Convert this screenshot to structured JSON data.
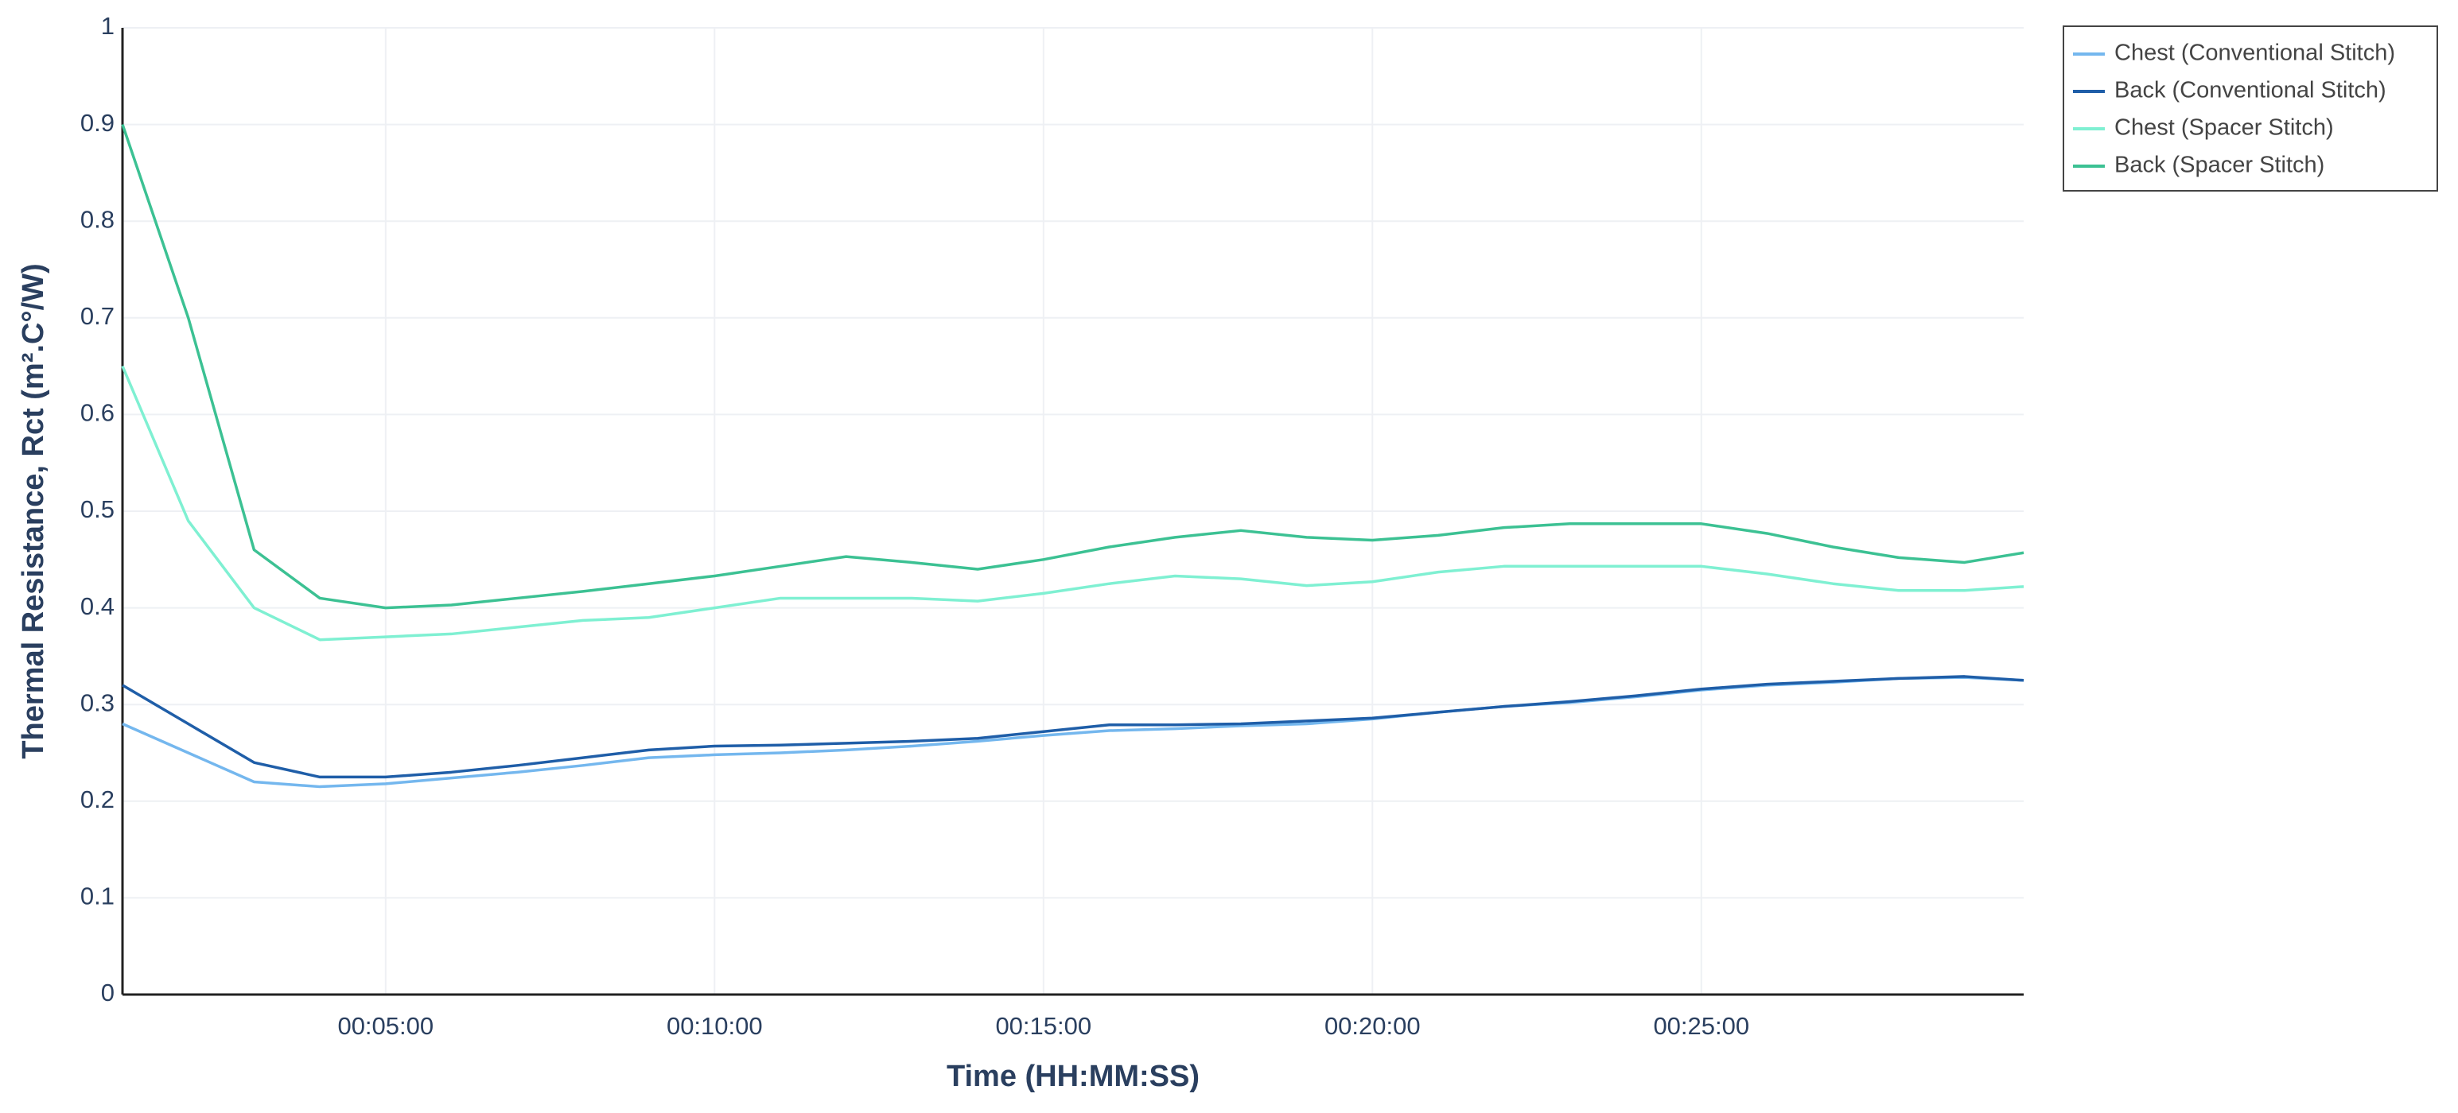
{
  "chart_data": {
    "type": "line",
    "x_label": "Time (HH:MM:SS)",
    "y_label": "Thermal Resistance, Rct  (m².C°/W)",
    "x": [
      60,
      120,
      180,
      240,
      300,
      360,
      420,
      480,
      540,
      600,
      660,
      720,
      780,
      840,
      900,
      960,
      1020,
      1080,
      1140,
      1200,
      1260,
      1320,
      1380,
      1440,
      1500,
      1560,
      1620,
      1680,
      1740,
      1794
    ],
    "xlim": [
      60,
      1794
    ],
    "xticks": [
      {
        "value": 300,
        "label": "00:05:00"
      },
      {
        "value": 600,
        "label": "00:10:00"
      },
      {
        "value": 900,
        "label": "00:15:00"
      },
      {
        "value": 1200,
        "label": "00:20:00"
      },
      {
        "value": 1500,
        "label": "00:25:00"
      }
    ],
    "ylim": [
      0,
      1
    ],
    "yticks": [
      0,
      0.1,
      0.2,
      0.3,
      0.4,
      0.5,
      0.6,
      0.7,
      0.8,
      0.9,
      1
    ],
    "grid": true,
    "legend": "outside-top-right",
    "series": [
      {
        "name": "Chest (Conventional Stitch)",
        "color": "#74b7ee",
        "values": [
          0.28,
          0.25,
          0.22,
          0.215,
          0.218,
          0.224,
          0.23,
          0.237,
          0.245,
          0.248,
          0.25,
          0.253,
          0.257,
          0.262,
          0.268,
          0.273,
          0.275,
          0.278,
          0.28,
          0.285,
          0.292,
          0.298,
          0.302,
          0.308,
          0.315,
          0.32,
          0.323,
          0.327,
          0.328,
          0.325
        ]
      },
      {
        "name": "Back (Conventional Stitch)",
        "color": "#1f5ea8",
        "values": [
          0.32,
          0.28,
          0.24,
          0.225,
          0.225,
          0.23,
          0.237,
          0.245,
          0.253,
          0.257,
          0.258,
          0.26,
          0.262,
          0.265,
          0.272,
          0.279,
          0.279,
          0.28,
          0.283,
          0.286,
          0.292,
          0.298,
          0.303,
          0.309,
          0.316,
          0.321,
          0.324,
          0.327,
          0.329,
          0.325
        ]
      },
      {
        "name": "Chest (Spacer Stitch)",
        "color": "#7ff0d2",
        "values": [
          0.65,
          0.49,
          0.4,
          0.367,
          0.37,
          0.373,
          0.38,
          0.387,
          0.39,
          0.4,
          0.41,
          0.41,
          0.41,
          0.407,
          0.415,
          0.425,
          0.433,
          0.43,
          0.423,
          0.427,
          0.437,
          0.443,
          0.443,
          0.443,
          0.443,
          0.435,
          0.425,
          0.418,
          0.418,
          0.422
        ]
      },
      {
        "name": "Back (Spacer Stitch)",
        "color": "#3cc193",
        "values": [
          0.9,
          0.7,
          0.46,
          0.41,
          0.4,
          0.403,
          0.41,
          0.417,
          0.425,
          0.433,
          0.443,
          0.453,
          0.447,
          0.44,
          0.45,
          0.463,
          0.473,
          0.48,
          0.473,
          0.47,
          0.475,
          0.483,
          0.487,
          0.487,
          0.487,
          0.477,
          0.463,
          0.452,
          0.447,
          0.457
        ]
      }
    ]
  }
}
